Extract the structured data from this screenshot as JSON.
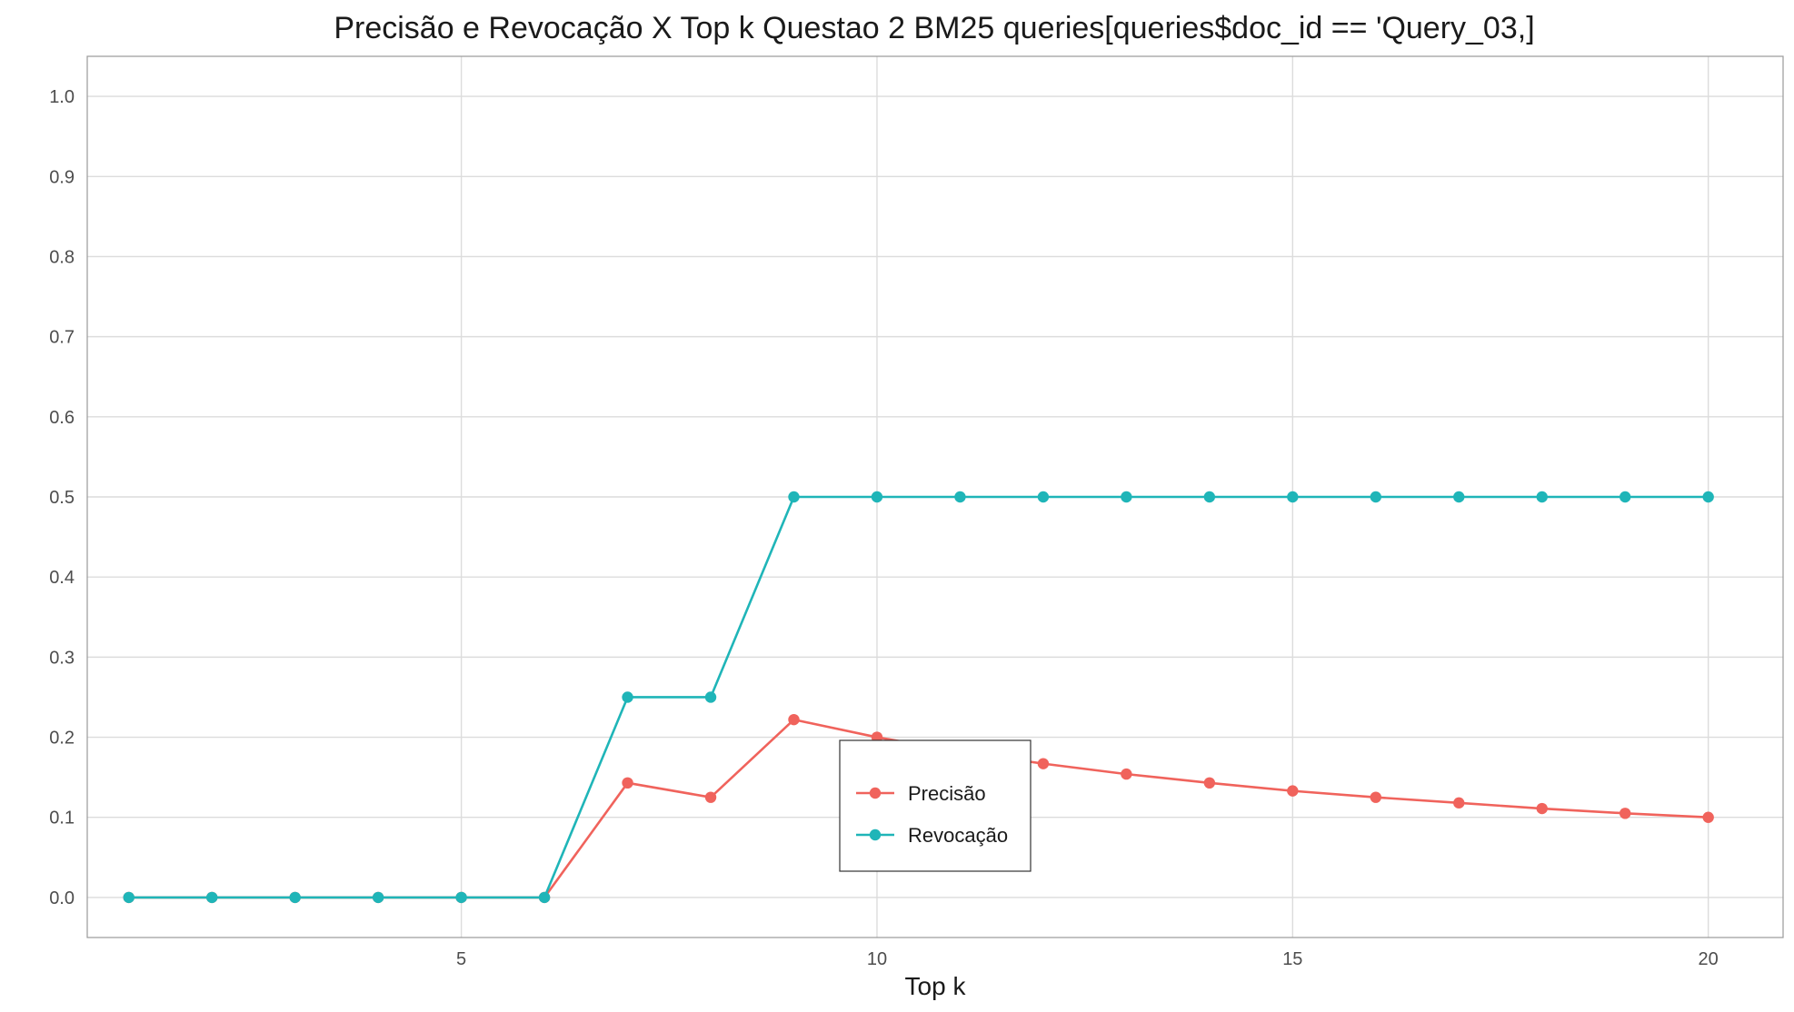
{
  "chart_data": {
    "type": "line",
    "title": "Precisão e Revocação X Top k Questao 2 BM25 queries[queries$doc_id == 'Query_03,]",
    "xlabel": "Top k",
    "ylabel": "",
    "xlim": [
      0.5,
      20.9
    ],
    "ylim": [
      -0.05,
      1.05
    ],
    "x_ticks": [
      5,
      10,
      15,
      20
    ],
    "y_ticks": [
      0.0,
      0.1,
      0.2,
      0.3,
      0.4,
      0.5,
      0.6,
      0.7,
      0.8,
      0.9,
      1.0
    ],
    "grid": true,
    "legend_position": "inside-center",
    "x": [
      1,
      2,
      3,
      4,
      5,
      6,
      7,
      8,
      9,
      10,
      11,
      12,
      13,
      14,
      15,
      16,
      17,
      18,
      19,
      20
    ],
    "series": [
      {
        "name": "Precisão",
        "color": "#f0635c",
        "values": [
          0,
          0,
          0,
          0,
          0,
          0,
          0.143,
          0.125,
          0.222,
          0.2,
          0.182,
          0.167,
          0.154,
          0.143,
          0.133,
          0.125,
          0.118,
          0.111,
          0.105,
          0.1
        ]
      },
      {
        "name": "Revocação",
        "color": "#1fb5b8",
        "values": [
          0,
          0,
          0,
          0,
          0,
          0,
          0.25,
          0.25,
          0.5,
          0.5,
          0.5,
          0.5,
          0.5,
          0.5,
          0.5,
          0.5,
          0.5,
          0.5,
          0.5,
          0.5
        ]
      }
    ]
  }
}
